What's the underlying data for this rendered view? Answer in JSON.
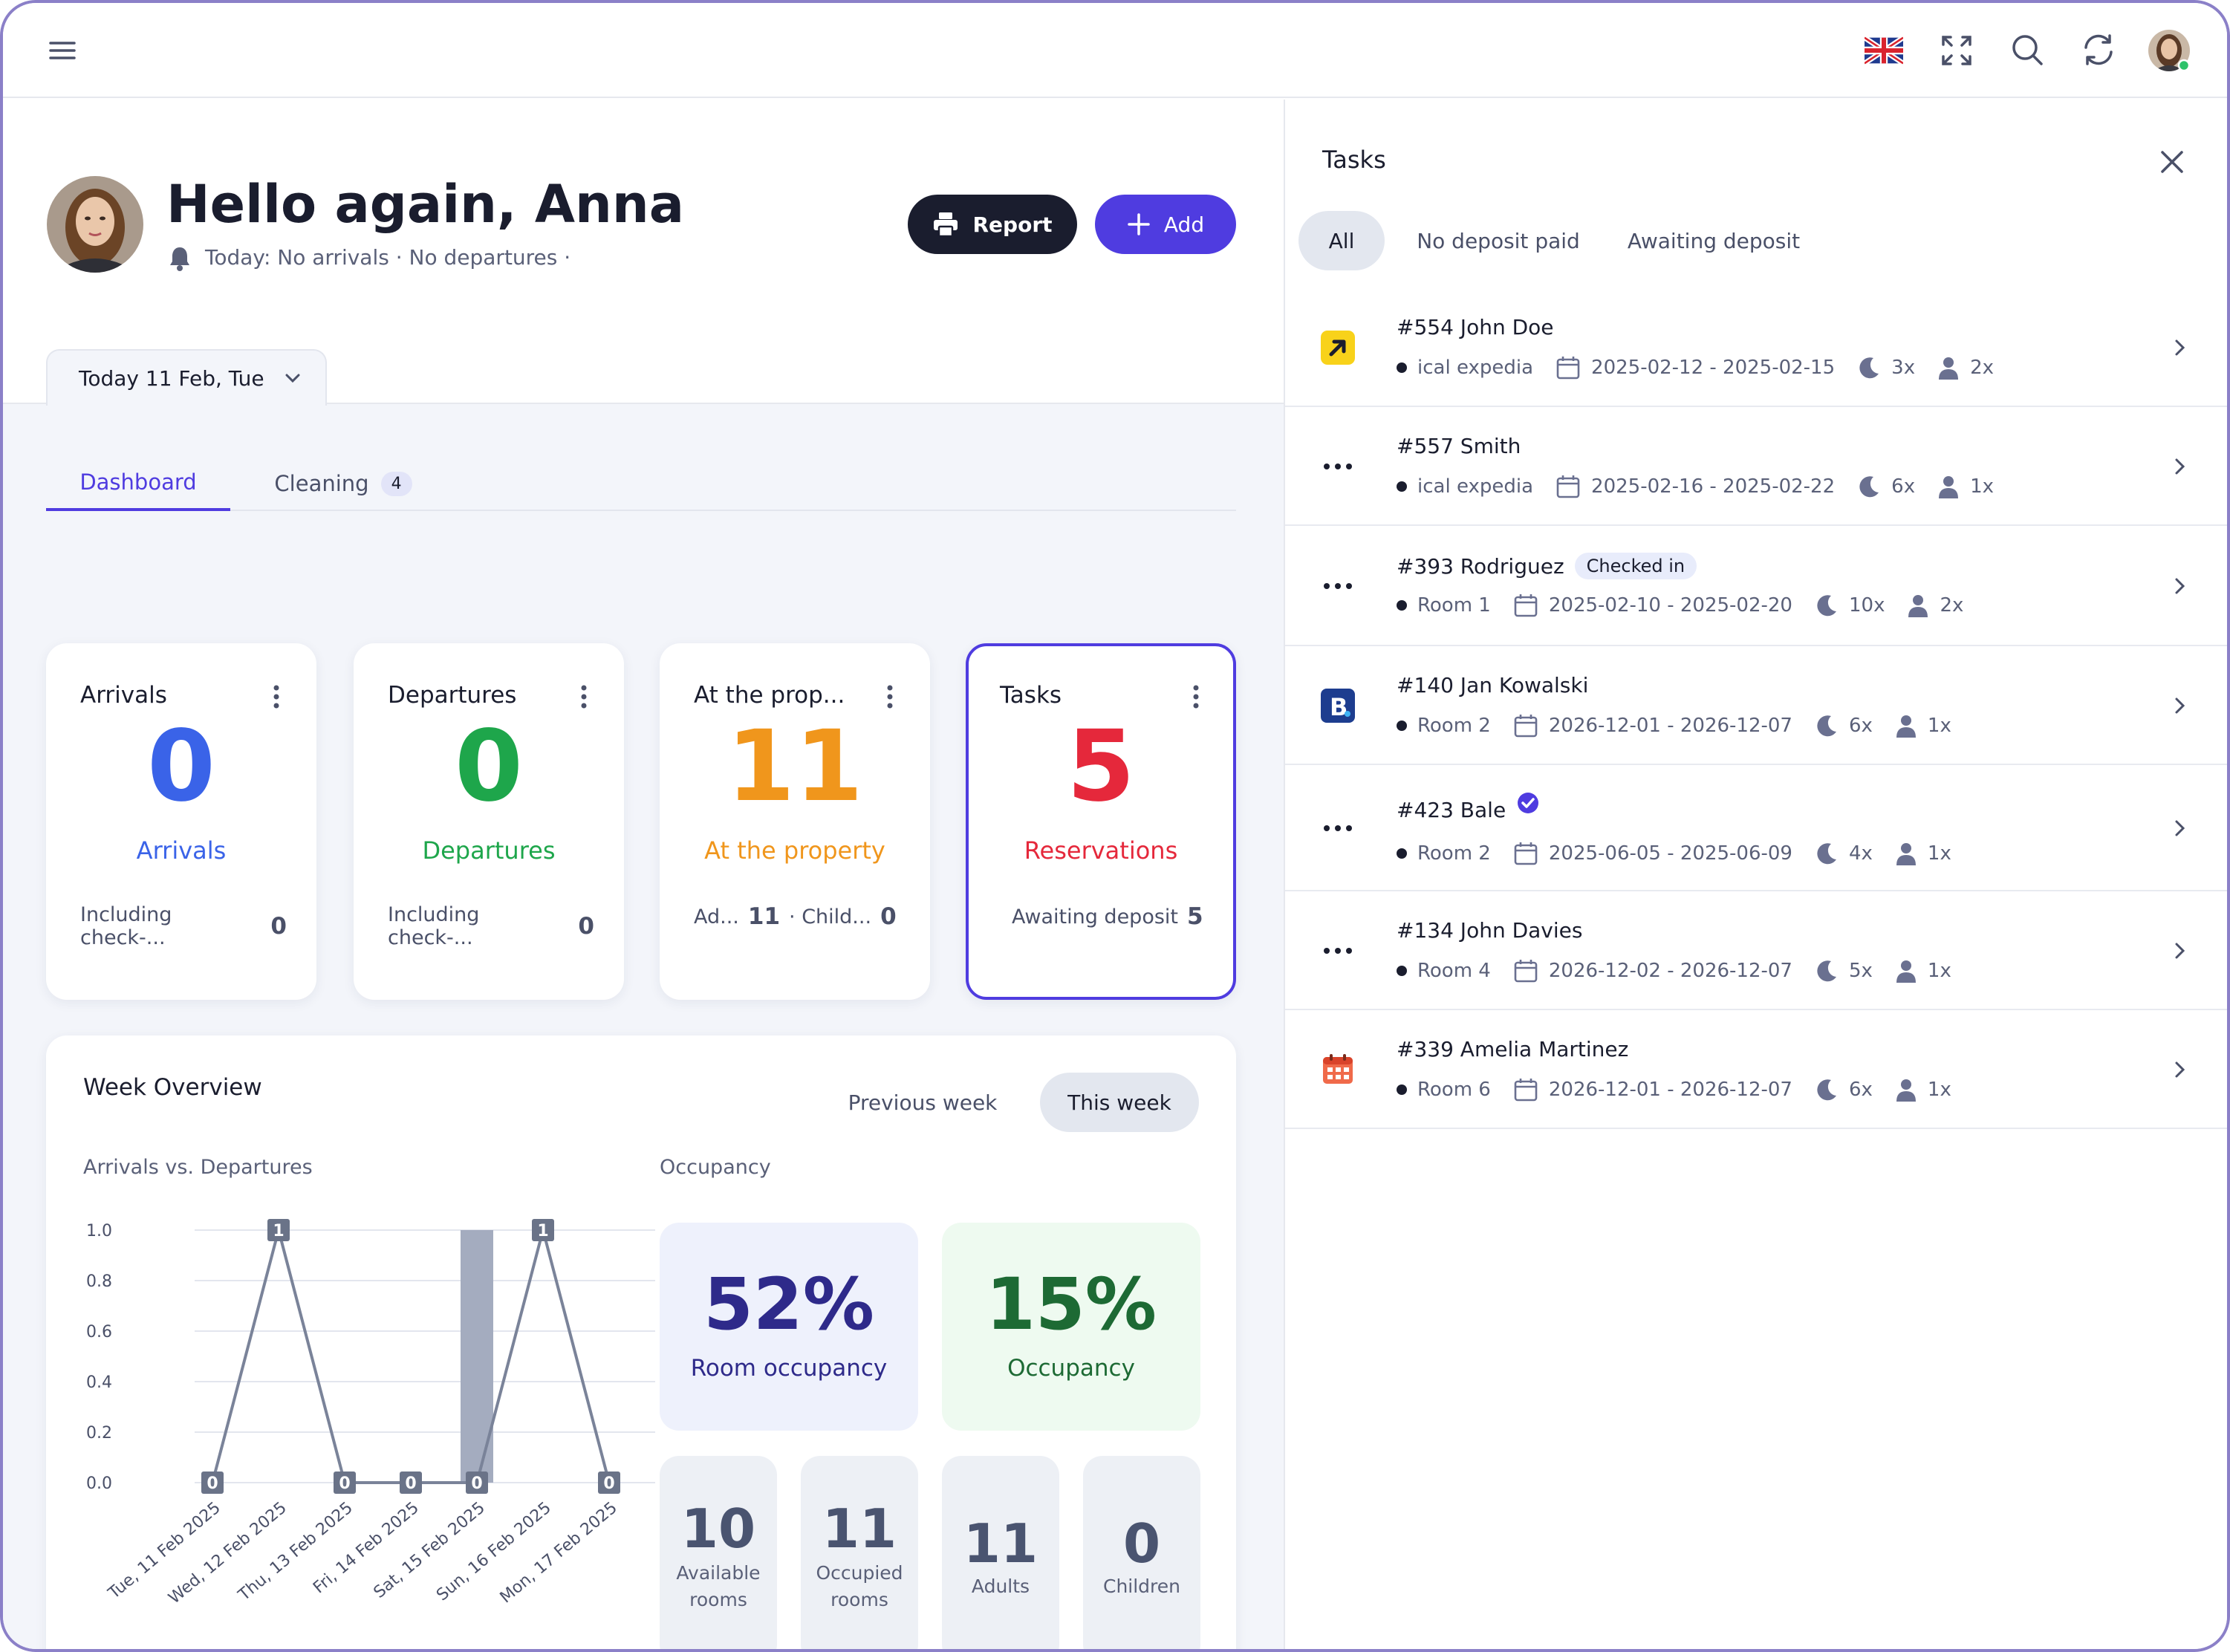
{
  "topbar": {
    "menu_icon": "hamburger-icon",
    "icons": [
      "uk-flag-icon",
      "fullscreen-icon",
      "search-icon",
      "refresh-icon",
      "avatar"
    ]
  },
  "header": {
    "greeting": "Hello again, Anna",
    "subtitle": "Today: No arrivals · No departures ·",
    "report_label": "Report",
    "add_label": "Add",
    "date_selector": "Today 11 Feb, Tue"
  },
  "tabs": [
    {
      "label": "Dashboard",
      "active": true
    },
    {
      "label": "Cleaning",
      "badge": "4"
    }
  ],
  "cards": [
    {
      "title": "Arrivals",
      "value": "0",
      "label": "Arrivals",
      "foot_label": "Including check-...",
      "foot_value": "0",
      "color": "#3a63e8"
    },
    {
      "title": "Departures",
      "value": "0",
      "label": "Departures",
      "foot_label": "Including check-...",
      "foot_value": "0",
      "color": "#1ea64b"
    },
    {
      "title": "At the prop...",
      "value": "11",
      "label": "At the property",
      "foot_label_a": "Ad...",
      "foot_value_a": "11",
      "foot_label_b": "· Child...",
      "foot_value_b": "0",
      "color": "#f0961c"
    },
    {
      "title": "Tasks",
      "value": "5",
      "label": "Reservations",
      "foot_label": "Awaiting deposit",
      "foot_value": "5",
      "color": "#e5283b"
    }
  ],
  "week": {
    "title": "Week Overview",
    "prev_label": "Previous week",
    "this_label": "This week",
    "chart_title": "Arrivals vs. Departures",
    "occupancy_title": "Occupancy",
    "room_occupancy_value": "52%",
    "room_occupancy_label": "Room occupancy",
    "occupancy_value": "15%",
    "occupancy_label": "Occupancy",
    "tiles": [
      {
        "value": "10",
        "label1": "Available",
        "label2": "rooms"
      },
      {
        "value": "11",
        "label1": "Occupied",
        "label2": "rooms"
      },
      {
        "value": "11",
        "label1": "Adults",
        "label2": ""
      },
      {
        "value": "0",
        "label1": "Children",
        "label2": ""
      }
    ]
  },
  "chart_data": {
    "type": "line",
    "title": "Arrivals vs. Departures",
    "categories": [
      "Tue, 11 Feb 2025",
      "Wed, 12 Feb 2025",
      "Thu, 13 Feb 2025",
      "Fri, 14 Feb 2025",
      "Sat, 15 Feb 2025",
      "Sun, 16 Feb 2025",
      "Mon, 17 Feb 2025"
    ],
    "series": [
      {
        "type": "line",
        "values": [
          0,
          1,
          0,
          0,
          0,
          1,
          0
        ]
      },
      {
        "type": "bar",
        "values": [
          0,
          0,
          0,
          0,
          1,
          0,
          0
        ]
      }
    ],
    "yticks": [
      "1.0",
      "0.8",
      "0.6",
      "0.4",
      "0.2",
      "0.0"
    ],
    "ylim": [
      0,
      1
    ],
    "grid": true
  },
  "tasks": {
    "title": "Tasks",
    "filters": [
      "All",
      "No deposit paid",
      "Awaiting deposit"
    ],
    "items": [
      {
        "name": "#554 John Doe",
        "source": "ical expedia",
        "dates": "2025-02-12 - 2025-02-15",
        "nights": "3x",
        "guests": "2x",
        "icon": "expedia-icon"
      },
      {
        "name": "#557 Smith",
        "source": "ical expedia",
        "dates": "2025-02-16 - 2025-02-22",
        "nights": "6x",
        "guests": "1x",
        "icon": "more-dots-icon"
      },
      {
        "name": "#393 Rodriguez",
        "badge": "Checked in",
        "source": "Room 1",
        "dates": "2025-02-10 - 2025-02-20",
        "nights": "10x",
        "guests": "2x",
        "icon": "more-dots-icon"
      },
      {
        "name": "#140 Jan Kowalski",
        "source": "Room 2",
        "dates": "2026-12-01 - 2026-12-07",
        "nights": "6x",
        "guests": "1x",
        "icon": "booking-icon"
      },
      {
        "name": "#423 Bale",
        "verified": true,
        "source": "Room 2",
        "dates": "2025-06-05 - 2025-06-09",
        "nights": "4x",
        "guests": "1x",
        "icon": "more-dots-icon"
      },
      {
        "name": "#134 John Davies",
        "source": "Room 4",
        "dates": "2026-12-02 - 2026-12-07",
        "nights": "5x",
        "guests": "1x",
        "icon": "more-dots-icon"
      },
      {
        "name": "#339 Amelia Martinez",
        "source": "Room 6",
        "dates": "2026-12-01 - 2026-12-07",
        "nights": "6x",
        "guests": "1x",
        "icon": "calendar-app-icon"
      }
    ]
  },
  "colors": {
    "accent": "#4f3ce0",
    "dark": "#1a1d2e",
    "arrivals": "#3a63e8",
    "departures": "#1ea64b",
    "property": "#f0961c",
    "reservations": "#e5283b"
  }
}
